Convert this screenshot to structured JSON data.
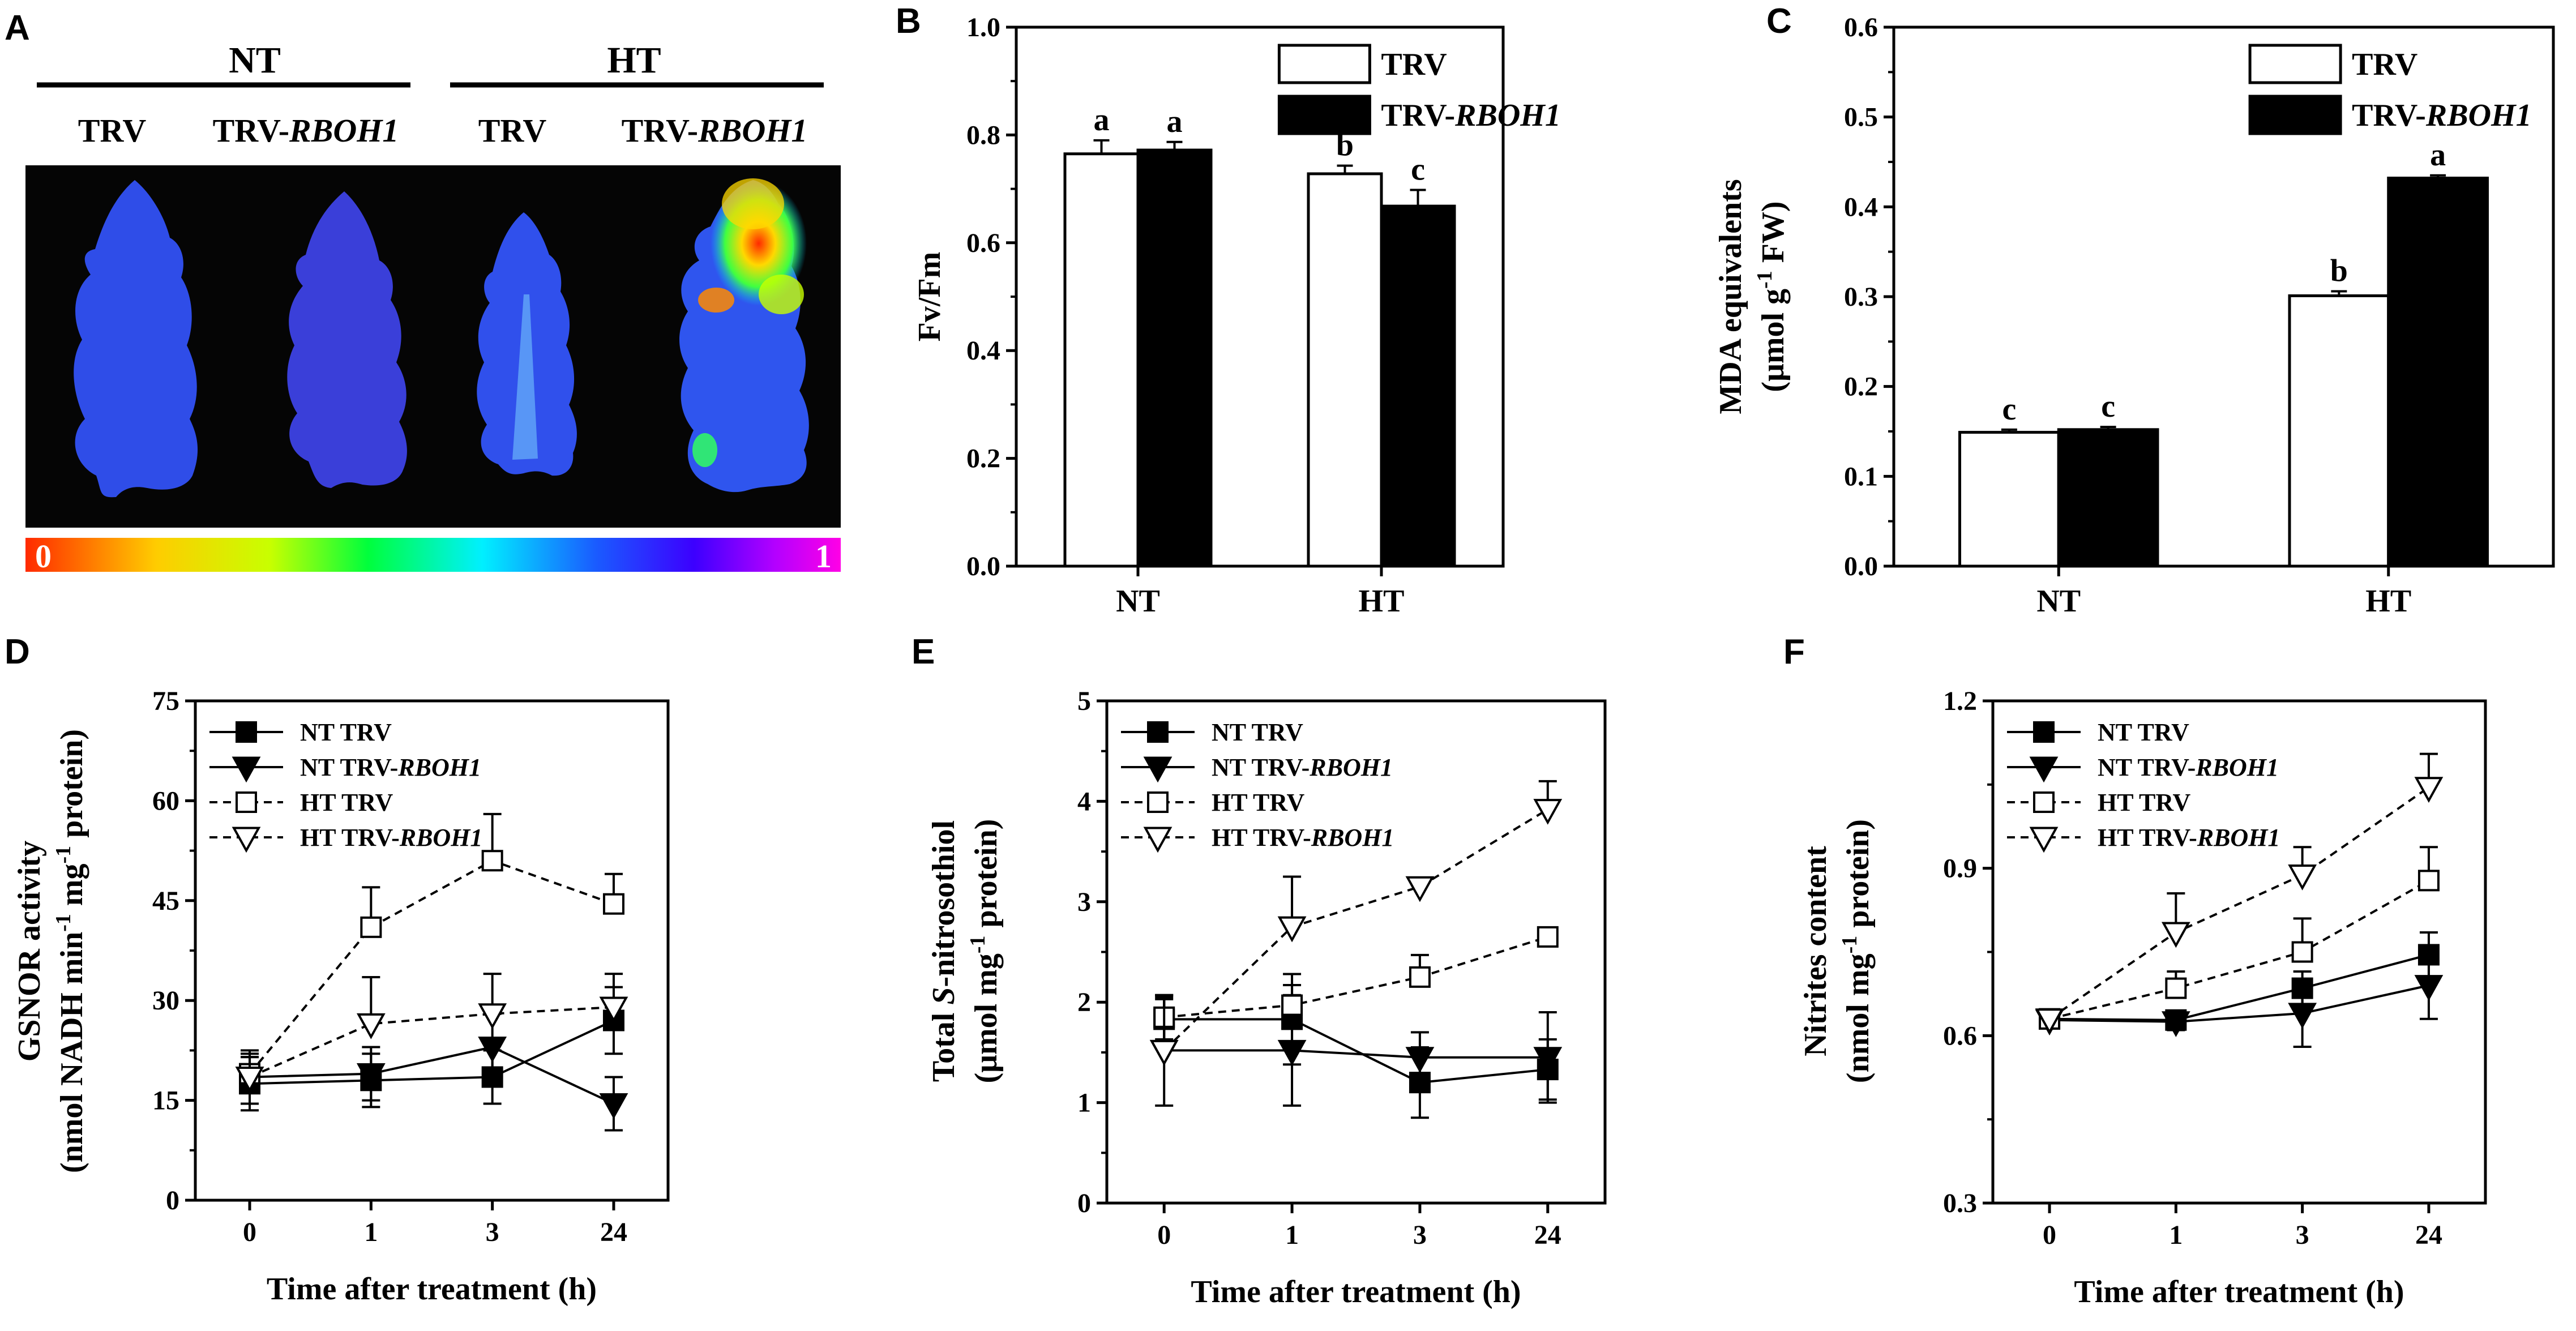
{
  "panels": {
    "A": {
      "letter": "A",
      "groups": [
        "NT",
        "HT"
      ],
      "columns": [
        "TRV",
        "TRV-",
        "RBOH1",
        "TRV",
        "TRV-",
        "RBOH1"
      ],
      "scale_min": "0",
      "scale_max": "1"
    }
  },
  "chart_data": [
    {
      "panel": "B",
      "type": "bar",
      "ylabel": "Fv/Fm",
      "categories": [
        "NT",
        "HT"
      ],
      "ylim": [
        0.0,
        1.0
      ],
      "yticks": [
        "0.0",
        "0.2",
        "0.4",
        "0.6",
        "0.8",
        "1.0"
      ],
      "legend": [
        "TRV",
        "TRV-",
        "RBOH1"
      ],
      "series": [
        {
          "name": "TRV",
          "fill": "#ffffff",
          "values": [
            0.765,
            0.728
          ],
          "errors": [
            0.025,
            0.015
          ],
          "letters": [
            "a",
            "b"
          ]
        },
        {
          "name": "TRV-RBOH1",
          "fill": "#000000",
          "values": [
            0.772,
            0.668
          ],
          "errors": [
            0.015,
            0.03
          ],
          "letters": [
            "a",
            "c"
          ]
        }
      ]
    },
    {
      "panel": "C",
      "type": "bar",
      "ylabel_line1": "MDA equivalents",
      "ylabel_line2": "(μmol g",
      "ylabel_sup": "-1",
      "ylabel_tail": " FW)",
      "categories": [
        "NT",
        "HT"
      ],
      "ylim": [
        0.0,
        0.6
      ],
      "yticks": [
        "0.0",
        "0.1",
        "0.2",
        "0.3",
        "0.4",
        "0.5",
        "0.6"
      ],
      "legend": [
        "TRV",
        "TRV-",
        "RBOH1"
      ],
      "series": [
        {
          "name": "TRV",
          "fill": "#ffffff",
          "values": [
            0.149,
            0.301
          ],
          "errors": [
            0.003,
            0.005
          ],
          "letters": [
            "c",
            "b"
          ]
        },
        {
          "name": "TRV-RBOH1",
          "fill": "#000000",
          "values": [
            0.152,
            0.432
          ],
          "errors": [
            0.003,
            0.003
          ],
          "letters": [
            "c",
            "a"
          ]
        }
      ]
    },
    {
      "panel": "D",
      "type": "line",
      "ylabel_line1": "GSNOR activity",
      "ylabel_line2": "(nmol NADH min",
      "ylabel_sup1": "-1",
      "ylabel_mid": " mg",
      "ylabel_sup2": "-1",
      "ylabel_tail": " protein)",
      "xlabel": "Time after treatment (h)",
      "x": [
        "0",
        "1",
        "3",
        "24"
      ],
      "ylim": [
        0,
        75
      ],
      "yticks": [
        "0",
        "15",
        "30",
        "45",
        "60",
        "75"
      ],
      "legend": [
        "NT TRV",
        "NT TRV-",
        "RBOH1",
        "HT TRV",
        "HT TRV-",
        "RBOH1"
      ],
      "series": [
        {
          "name": "NT TRV",
          "marker": "square-filled",
          "dash": false,
          "values": [
            17.5,
            18,
            18.5,
            27
          ],
          "errors": [
            4,
            4,
            4,
            5
          ]
        },
        {
          "name": "NT TRV-RBOH1",
          "marker": "triangle-filled",
          "dash": false,
          "values": [
            18.5,
            19,
            23,
            14.5
          ],
          "errors": [
            4,
            4,
            5,
            4
          ]
        },
        {
          "name": "HT TRV",
          "marker": "square-open",
          "dash": true,
          "values": [
            19,
            41,
            51,
            44.5
          ],
          "errors": [
            3,
            6,
            7,
            4.5
          ]
        },
        {
          "name": "HT TRV-RBOH1",
          "marker": "triangle-open",
          "dash": true,
          "values": [
            18.5,
            26.5,
            28,
            29
          ],
          "errors": [
            3,
            7,
            6,
            5
          ]
        }
      ]
    },
    {
      "panel": "E",
      "type": "line",
      "ylabel_line1a": "Total ",
      "ylabel_line1b": "S",
      "ylabel_line1c": "-nitrosothiol",
      "ylabel_line2": "(μmol mg",
      "ylabel_sup": "-1",
      "ylabel_tail": " protein)",
      "xlabel": "Time after treatment (h)",
      "x": [
        "0",
        "1",
        "3",
        "24"
      ],
      "ylim": [
        0,
        5
      ],
      "yticks": [
        "0",
        "1",
        "2",
        "3",
        "4",
        "5"
      ],
      "legend": [
        "NT TRV",
        "NT TRV-",
        "RBOH1",
        "HT TRV",
        "HT TRV-",
        "RBOH1"
      ],
      "series": [
        {
          "name": "NT TRV",
          "marker": "square-filled",
          "dash": false,
          "values": [
            1.83,
            1.83,
            1.2,
            1.33
          ],
          "errors": [
            0.2,
            0.45,
            0.35,
            0.3
          ]
        },
        {
          "name": "NT TRV-RBOH1",
          "marker": "triangle-filled",
          "dash": false,
          "values": [
            1.52,
            1.52,
            1.45,
            1.45
          ],
          "errors": [
            0.55,
            0.55,
            0.25,
            0.45
          ]
        },
        {
          "name": "HT TRV",
          "marker": "square-open",
          "dash": true,
          "values": [
            1.85,
            1.97,
            2.25,
            2.65
          ],
          "errors": [
            0.2,
            0.2,
            0.22,
            0.05
          ]
        },
        {
          "name": "HT TRV-RBOH1",
          "marker": "triangle-open",
          "dash": true,
          "values": [
            1.52,
            2.75,
            3.15,
            3.92
          ],
          "errors": [
            0.55,
            0.5,
            0.08,
            0.28
          ]
        }
      ]
    },
    {
      "panel": "F",
      "type": "line",
      "ylabel_line1": "Nitrites content",
      "ylabel_line2": "(nmol mg",
      "ylabel_sup": "-1",
      "ylabel_tail": " protein)",
      "xlabel": "Time after treatment (h)",
      "x": [
        "0",
        "1",
        "3",
        "24"
      ],
      "ylim": [
        0.3,
        1.2
      ],
      "yticks": [
        "0.3",
        "0.6",
        "0.9",
        "1.2"
      ],
      "legend": [
        "NT TRV",
        "NT TRV-",
        "RBOH1",
        "HT TRV",
        "HT TRV-",
        "RBOH1"
      ],
      "series": [
        {
          "name": "NT TRV",
          "marker": "square-filled",
          "dash": false,
          "values": [
            0.63,
            0.628,
            0.685,
            0.745
          ],
          "errors": [
            0.015,
            0.015,
            0.03,
            0.04
          ]
        },
        {
          "name": "NT TRV-RBOH1",
          "marker": "triangle-filled",
          "dash": false,
          "values": [
            0.628,
            0.625,
            0.64,
            0.69
          ],
          "errors": [
            0.015,
            0.015,
            0.06,
            0.06
          ]
        },
        {
          "name": "HT TRV",
          "marker": "square-open",
          "dash": true,
          "values": [
            0.63,
            0.685,
            0.75,
            0.878
          ],
          "errors": [
            0.015,
            0.03,
            0.06,
            0.06
          ]
        },
        {
          "name": "HT TRV-RBOH1",
          "marker": "triangle-open",
          "dash": true,
          "values": [
            0.63,
            0.785,
            0.888,
            1.045
          ],
          "errors": [
            0.015,
            0.07,
            0.05,
            0.06
          ]
        }
      ]
    }
  ],
  "letters": [
    "B",
    "C",
    "D",
    "E",
    "F"
  ]
}
